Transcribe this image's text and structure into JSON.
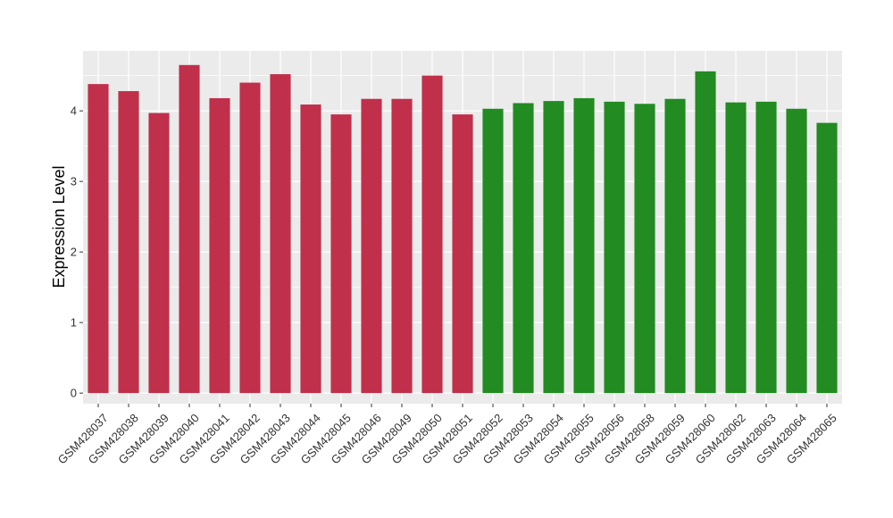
{
  "chart_data": {
    "type": "bar",
    "title": "",
    "xlabel": "",
    "ylabel": "Expression Level",
    "ylim": [
      -0.15,
      4.85
    ],
    "yticks": [
      0,
      1,
      2,
      3,
      4
    ],
    "grid": true,
    "background": "#EBEBEB",
    "categories": [
      "GSM428037",
      "GSM428038",
      "GSM428039",
      "GSM428040",
      "GSM428041",
      "GSM428042",
      "GSM428043",
      "GSM428044",
      "GSM428045",
      "GSM428046",
      "GSM428049",
      "GSM428050",
      "GSM428051",
      "GSM428052",
      "GSM428053",
      "GSM428054",
      "GSM428055",
      "GSM428056",
      "GSM428058",
      "GSM428059",
      "GSM428060",
      "GSM428062",
      "GSM428063",
      "GSM428064",
      "GSM428065"
    ],
    "values": [
      4.38,
      4.28,
      3.97,
      4.65,
      4.18,
      4.4,
      4.52,
      4.09,
      3.95,
      4.17,
      4.17,
      4.5,
      3.95,
      4.03,
      4.11,
      4.14,
      4.18,
      4.13,
      4.1,
      4.17,
      4.56,
      4.12,
      4.13,
      4.03,
      3.83
    ],
    "groups": [
      "a",
      "a",
      "a",
      "a",
      "a",
      "a",
      "a",
      "a",
      "a",
      "a",
      "a",
      "a",
      "a",
      "b",
      "b",
      "b",
      "b",
      "b",
      "b",
      "b",
      "b",
      "b",
      "b",
      "b",
      "b"
    ],
    "group_colors": {
      "a": "#C0304A",
      "b": "#228B22"
    }
  }
}
